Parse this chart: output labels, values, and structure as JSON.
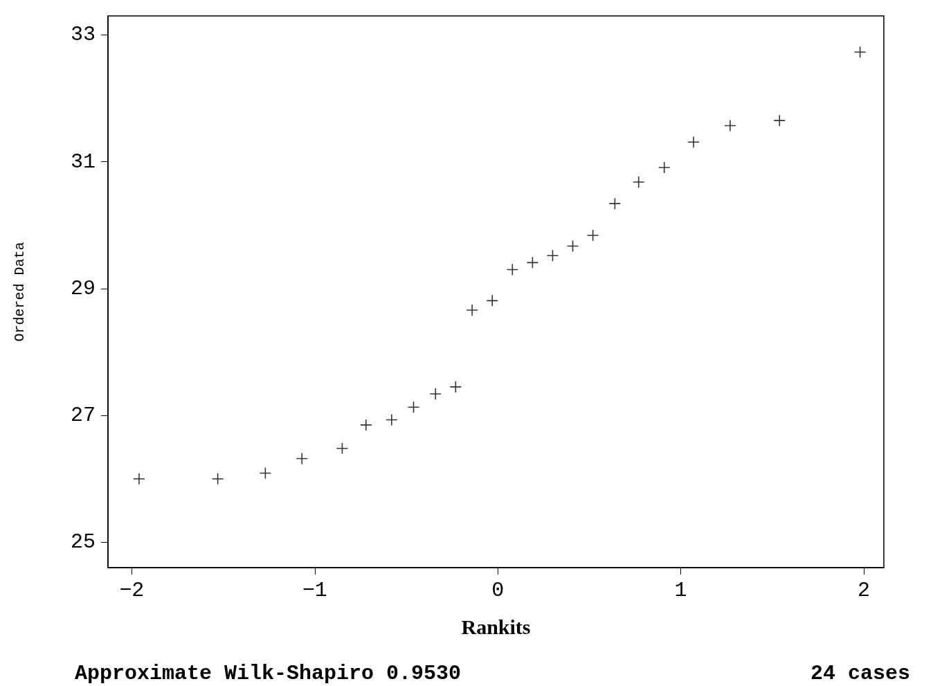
{
  "chart_data": {
    "type": "scatter",
    "xlabel": "Rankits",
    "ylabel": "Ordered Data",
    "annotations": [
      "Approximate Wilk-Shapiro 0.9530",
      "24 cases"
    ],
    "marker": "cross",
    "xlim": [
      -2.13,
      2.11
    ],
    "xticks": [
      -2,
      -1,
      0,
      1,
      2
    ],
    "ylim": [
      24.6,
      33.3
    ],
    "yticks": [
      25,
      27,
      29,
      31,
      33
    ],
    "series": [
      {
        "color": "#000000",
        "x": [
          -1.96,
          -1.53,
          -1.27,
          -1.07,
          -0.85,
          -0.72,
          -0.58,
          -0.46,
          -0.34,
          -0.23,
          -0.14,
          -0.03,
          0.08,
          0.19,
          0.3,
          0.41,
          0.52,
          0.64,
          0.77,
          0.91,
          1.07,
          1.27,
          1.54,
          1.98
        ],
        "values": [
          26.0,
          26.0,
          26.09,
          26.32,
          26.48,
          26.85,
          26.93,
          27.13,
          27.34,
          27.45,
          28.66,
          28.81,
          29.3,
          29.41,
          29.52,
          29.67,
          29.84,
          30.34,
          30.68,
          30.91,
          31.31,
          31.57,
          31.65,
          32.73
        ]
      }
    ]
  }
}
